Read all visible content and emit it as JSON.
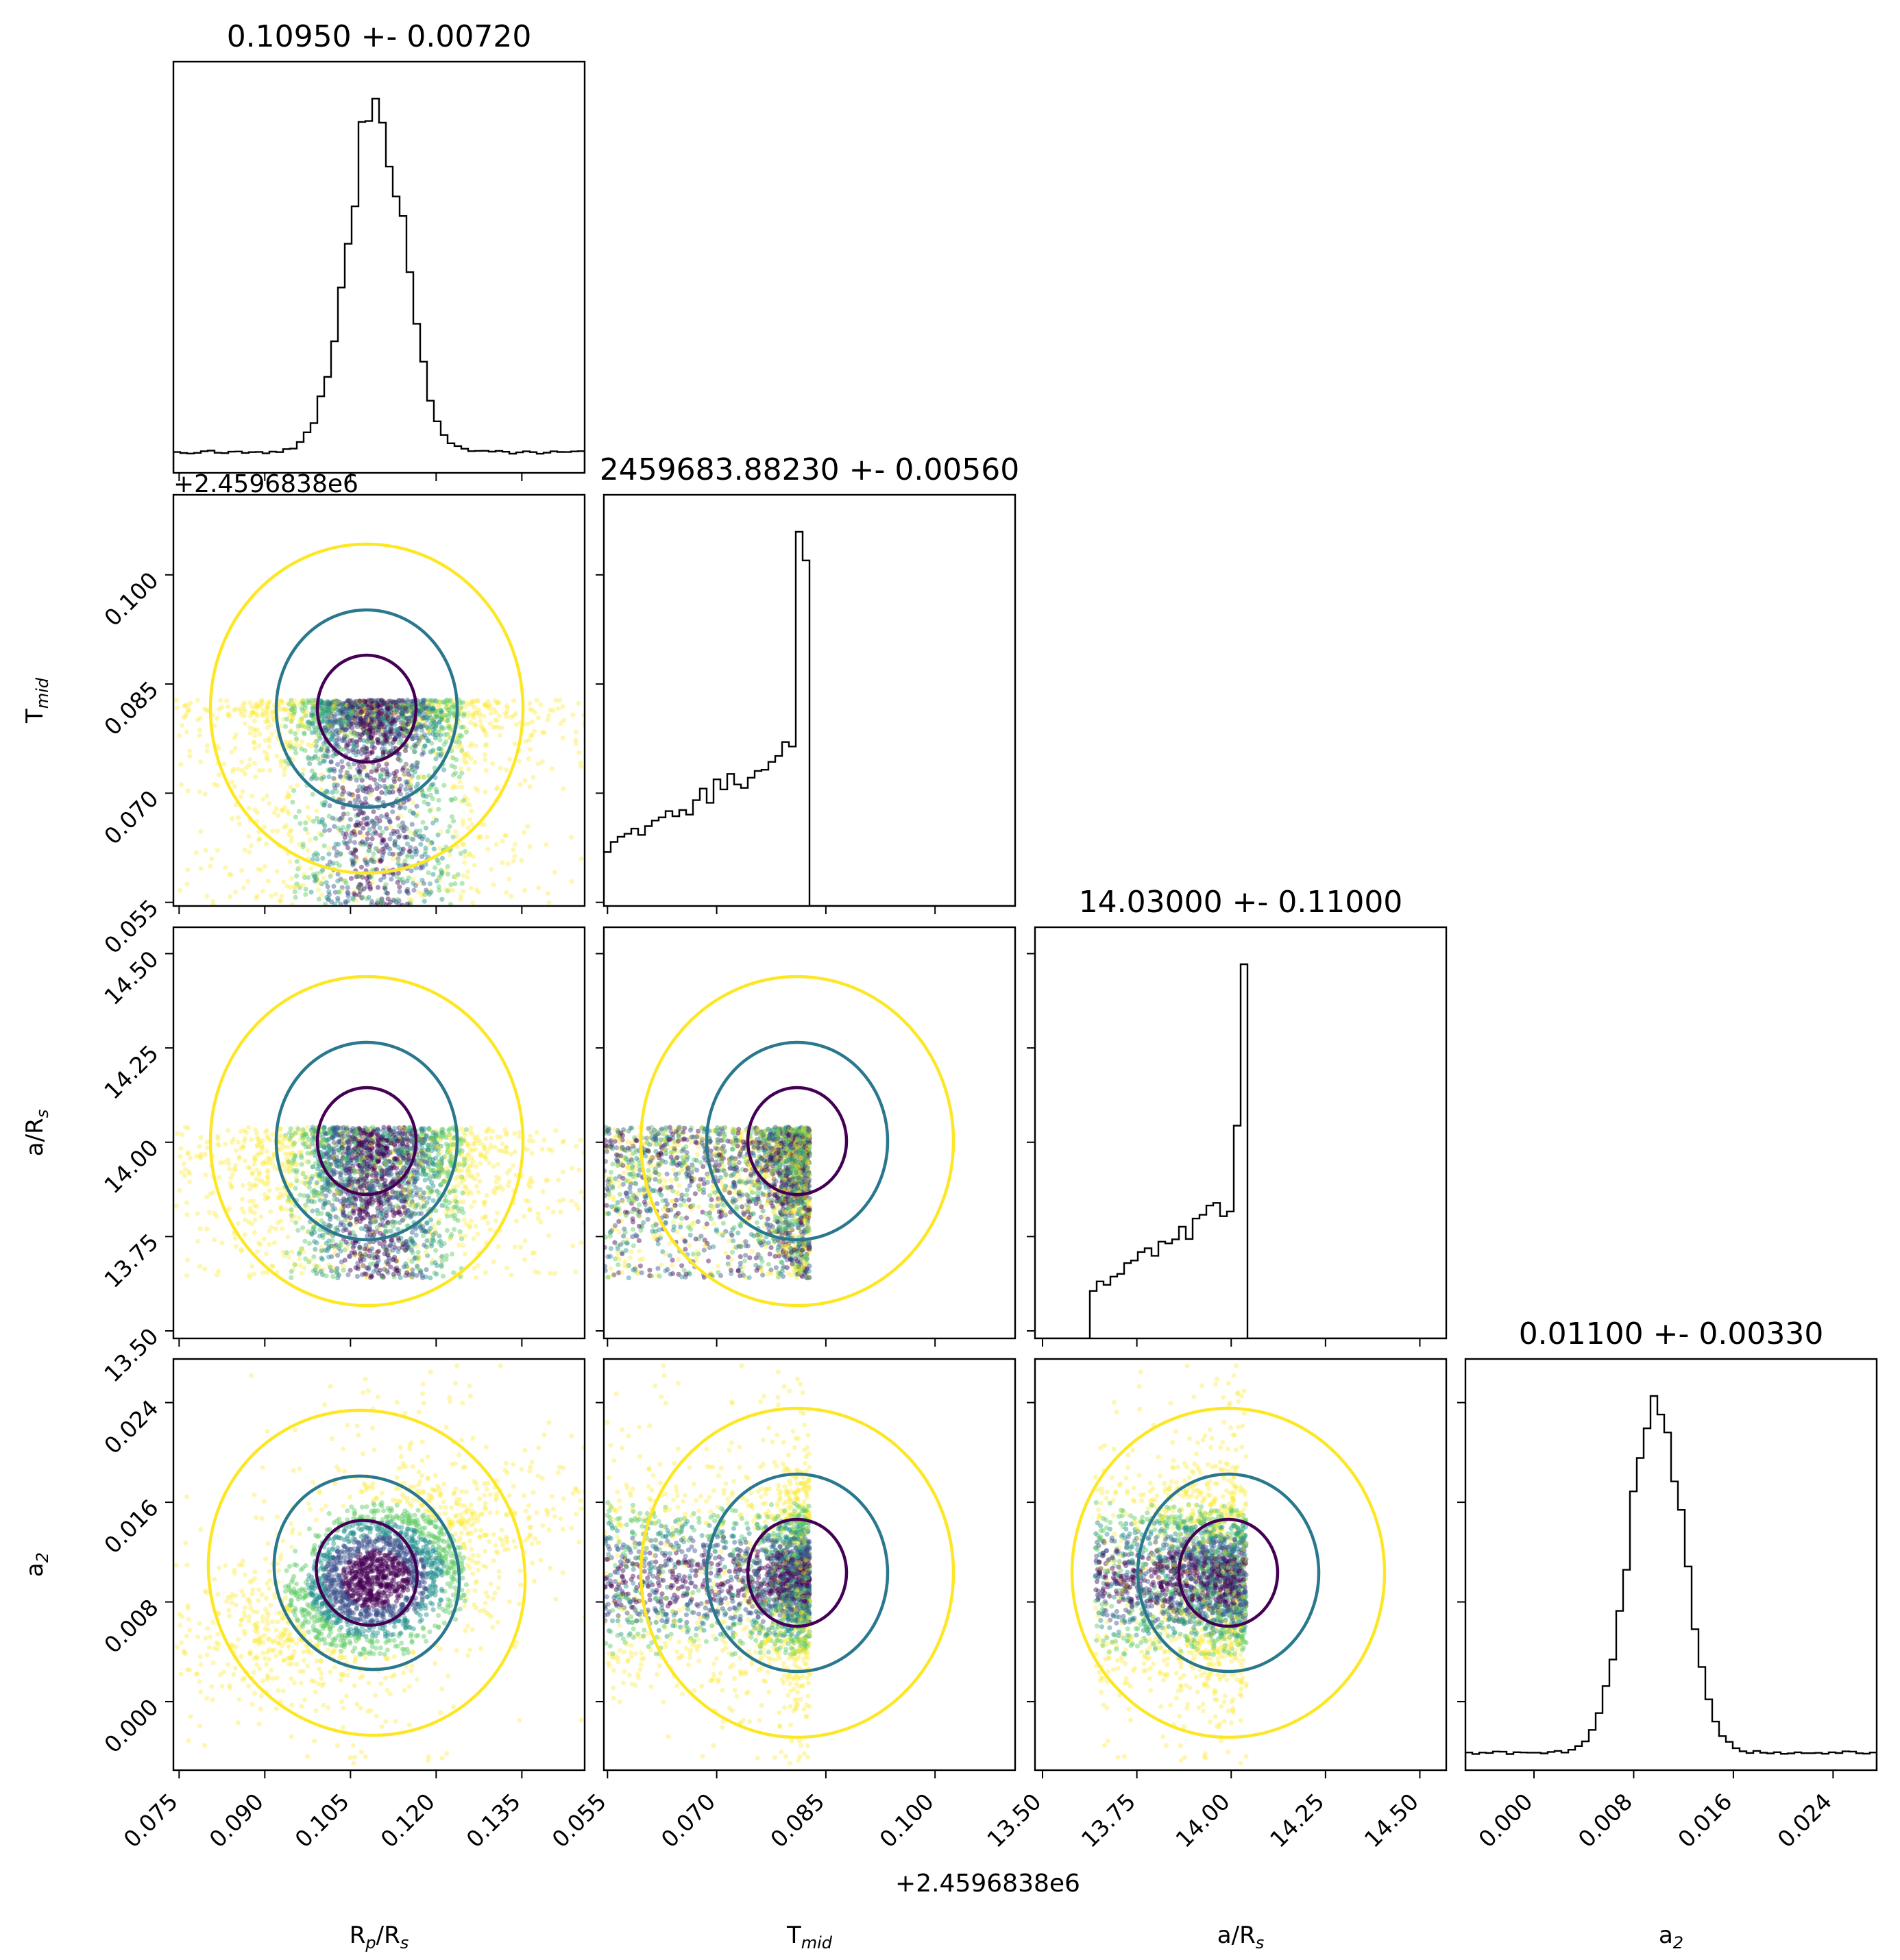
{
  "chart_data": {
    "type": "scatter",
    "description_kind": "corner-plot",
    "colors": {
      "histogram": "#000000",
      "contour_inner": "#440154",
      "contour_mid": "#2a788e",
      "contour_outer": "#fde725",
      "scatter_palette": [
        "#440154",
        "#3b528b",
        "#21918c",
        "#5ec962",
        "#fde725"
      ]
    },
    "parameters": [
      {
        "key": "rp",
        "label_main": "R",
        "label_sub1": "p",
        "label_mid": "/R",
        "label_sub2": "s",
        "title": "0.10950 +- 0.00720",
        "range": [
          0.074,
          0.146
        ],
        "ticks": [
          0.075,
          0.09,
          0.105,
          0.12,
          0.135
        ],
        "tick_labels": [
          "0.075",
          "0.090",
          "0.105",
          "0.120",
          "0.135"
        ],
        "offset_text": "",
        "hist": {
          "type": "normal-peak",
          "mu": 0.1095,
          "sigma": 0.005,
          "bg": 0.06,
          "slope": 0
        }
      },
      {
        "key": "tmid",
        "label_main": "T",
        "label_sub1": "mid",
        "label_mid": "",
        "label_sub2": "",
        "title": "2459683.88230 +- 0.00560",
        "range": [
          0.0545,
          0.111
        ],
        "ticks": [
          0.055,
          0.07,
          0.085,
          0.1
        ],
        "tick_labels": [
          "0.055",
          "0.070",
          "0.085",
          "0.100"
        ],
        "offset_text": "+2.4596838e6",
        "hist": {
          "type": "ramp-edge",
          "lo": 0.0545,
          "hi": 0.0828,
          "peak": 0.0818
        }
      },
      {
        "key": "ars",
        "label_main": "a/R",
        "label_sub1": "",
        "label_mid": "",
        "label_sub2": "s",
        "title": "14.03000 +- 0.11000",
        "range": [
          13.48,
          14.57
        ],
        "ticks": [
          13.5,
          13.75,
          14.0,
          14.25,
          14.5
        ],
        "tick_labels": [
          "13.50",
          "13.75",
          "14.00",
          "14.25",
          "14.50"
        ],
        "offset_text": "",
        "hist": {
          "type": "ramp-edge",
          "lo": 13.63,
          "hi": 14.04,
          "peak": 14.03
        }
      },
      {
        "key": "a2",
        "label_main": "a",
        "label_sub1": "2",
        "label_mid": "",
        "label_sub2": "",
        "title": "0.01100 +- 0.00330",
        "range": [
          -0.0055,
          0.0275
        ],
        "ticks": [
          0.0,
          0.008,
          0.016,
          0.024
        ],
        "tick_labels": [
          "0.000",
          "0.008",
          "0.016",
          "0.024"
        ],
        "offset_text": "",
        "hist": {
          "type": "normal-peak",
          "mu": 0.0098,
          "sigma": 0.0022,
          "bg": 0.05,
          "slope": 0
        }
      }
    ],
    "y_tick_labels_left": {
      "tmid": [
        "0.055",
        "0.070",
        "0.085",
        "0.100"
      ],
      "ars": [
        "13.50",
        "13.75",
        "14.00",
        "14.25",
        "14.50"
      ],
      "a2": [
        "0.000",
        "0.008",
        "0.016",
        "0.024"
      ]
    }
  }
}
